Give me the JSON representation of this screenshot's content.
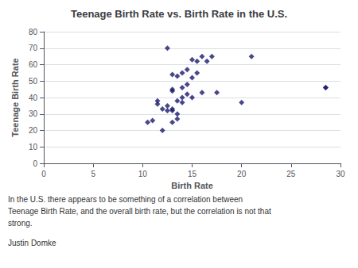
{
  "chart_data": {
    "type": "scatter",
    "title": "Teenage Birth Rate vs. Birth Rate in the U.S.",
    "xlabel": "Birth Rate",
    "ylabel": "Teenage Birth Rate",
    "x": [
      10.5,
      11.0,
      11.5,
      11.5,
      12.0,
      12.0,
      12.5,
      12.5,
      12.5,
      13.0,
      13.0,
      13.0,
      13.0,
      13.0,
      13.0,
      13.5,
      13.5,
      13.5,
      13.5,
      14.0,
      14.0,
      14.0,
      14.0,
      14.5,
      14.5,
      14.5,
      15.0,
      15.0,
      15.0,
      15.5,
      15.5,
      16.0,
      16.0,
      16.5,
      17.0,
      17.5,
      20.0,
      21.0,
      28.5,
      28.5
    ],
    "values": [
      25.0,
      26.0,
      36.0,
      38.0,
      20.0,
      33.0,
      32.0,
      35.0,
      70.0,
      25.0,
      32.0,
      33.0,
      44.0,
      45.0,
      54.0,
      27.0,
      30.0,
      38.0,
      53.0,
      37.0,
      40.0,
      46.0,
      55.0,
      42.0,
      48.0,
      57.0,
      40.0,
      52.0,
      63.0,
      55.0,
      62.0,
      43.0,
      65.0,
      62.0,
      65.0,
      43.0,
      37.0,
      65.0,
      46.0,
      46.0
    ],
    "color": "#1a1a6e",
    "marker": "diamond",
    "xlim": [
      0,
      30
    ],
    "ylim": [
      0,
      80
    ],
    "xticks": [
      0,
      5,
      10,
      15,
      20,
      25,
      30
    ],
    "yticks": [
      0,
      10,
      20,
      30,
      40,
      50,
      60,
      70,
      80
    ],
    "grid": true,
    "annotations": [
      "In the U.S. there appears to be something of a correlation between",
      "Teenage Birth Rate, and the overall birth rate, but the correlation is not that",
      "strong.",
      "Justin Domke"
    ]
  }
}
